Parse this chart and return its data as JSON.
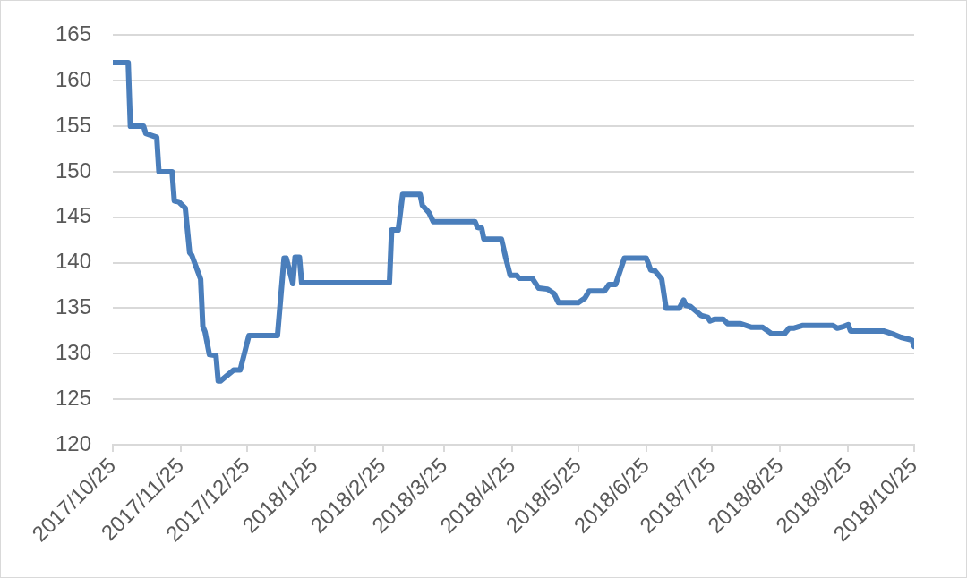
{
  "chart_data": {
    "type": "line",
    "x": [
      "2017-10-25",
      "2017-11-01",
      "2017-11-02",
      "2017-11-08",
      "2017-11-09",
      "2017-11-14",
      "2017-11-15",
      "2017-11-21",
      "2017-11-22",
      "2017-11-24",
      "2017-11-27",
      "2017-11-29",
      "2017-11-30",
      "2017-12-04",
      "2017-12-05",
      "2017-12-06",
      "2017-12-08",
      "2017-12-11",
      "2017-12-12",
      "2017-12-13",
      "2017-12-19",
      "2017-12-22",
      "2017-12-26",
      "2018-01-08",
      "2018-01-11",
      "2018-01-12",
      "2018-01-15",
      "2018-01-16",
      "2018-01-18",
      "2018-01-19",
      "2018-02-28",
      "2018-03-01",
      "2018-03-04",
      "2018-03-06",
      "2018-03-14",
      "2018-03-15",
      "2018-03-18",
      "2018-03-20",
      "2018-04-08",
      "2018-04-09",
      "2018-04-11",
      "2018-04-12",
      "2018-04-20",
      "2018-04-22",
      "2018-04-24",
      "2018-04-27",
      "2018-04-28",
      "2018-05-04",
      "2018-05-07",
      "2018-05-11",
      "2018-05-14",
      "2018-05-16",
      "2018-05-25",
      "2018-05-28",
      "2018-05-30",
      "2018-06-06",
      "2018-06-08",
      "2018-06-11",
      "2018-06-15",
      "2018-06-25",
      "2018-06-27",
      "2018-06-29",
      "2018-07-02",
      "2018-07-04",
      "2018-07-10",
      "2018-07-12",
      "2018-07-13",
      "2018-07-15",
      "2018-07-17",
      "2018-07-20",
      "2018-07-23",
      "2018-07-24",
      "2018-07-26",
      "2018-07-30",
      "2018-08-01",
      "2018-08-07",
      "2018-08-12",
      "2018-08-17",
      "2018-08-21",
      "2018-08-27",
      "2018-08-29",
      "2018-08-31",
      "2018-09-04",
      "2018-09-18",
      "2018-09-20",
      "2018-09-23",
      "2018-09-25",
      "2018-09-26",
      "2018-10-11",
      "2018-10-16",
      "2018-10-19",
      "2018-10-24",
      "2018-10-25"
    ],
    "series": [
      {
        "color": "#4a7ebb",
        "values": [
          162,
          162,
          155,
          155,
          154.2,
          153.8,
          150,
          150,
          146.8,
          146.7,
          146,
          141.1,
          140.8,
          138.2,
          133,
          132.4,
          129.9,
          129.8,
          127,
          127,
          128.2,
          128.2,
          132,
          132,
          140.5,
          140.5,
          137.7,
          140.6,
          140.6,
          137.8,
          137.8,
          143.6,
          143.6,
          147.5,
          147.5,
          146.3,
          145.5,
          144.5,
          144.5,
          143.9,
          143.8,
          142.6,
          142.6,
          140.5,
          138.6,
          138.6,
          138.3,
          138.3,
          137.2,
          137.1,
          136.6,
          135.6,
          135.6,
          136.1,
          136.9,
          136.9,
          137.6,
          137.6,
          140.5,
          140.5,
          139.2,
          139.1,
          138.2,
          135,
          135,
          135.9,
          135.3,
          135.2,
          134.8,
          134.2,
          134,
          133.6,
          133.8,
          133.8,
          133.3,
          133.3,
          132.9,
          132.9,
          132.2,
          132.2,
          132.8,
          132.8,
          133.1,
          133.1,
          132.8,
          133,
          133.2,
          132.5,
          132.5,
          132.1,
          131.8,
          131.5,
          130.8
        ]
      }
    ],
    "xlim": [
      "2017-10-25",
      "2018-10-25"
    ],
    "xticks": [
      {
        "value": "2017-10-25",
        "label": "2017/10/25"
      },
      {
        "value": "2017-11-25",
        "label": "2017/11/25"
      },
      {
        "value": "2017-12-25",
        "label": "2017/12/25"
      },
      {
        "value": "2018-01-25",
        "label": "2018/1/25"
      },
      {
        "value": "2018-02-25",
        "label": "2018/2/25"
      },
      {
        "value": "2018-03-25",
        "label": "2018/3/25"
      },
      {
        "value": "2018-04-25",
        "label": "2018/4/25"
      },
      {
        "value": "2018-05-25",
        "label": "2018/5/25"
      },
      {
        "value": "2018-06-25",
        "label": "2018/6/25"
      },
      {
        "value": "2018-07-25",
        "label": "2018/7/25"
      },
      {
        "value": "2018-08-25",
        "label": "2018/8/25"
      },
      {
        "value": "2018-09-25",
        "label": "2018/9/25"
      },
      {
        "value": "2018-10-25",
        "label": "2018/10/25"
      }
    ],
    "ylim": [
      120,
      165
    ],
    "yticks": [
      120,
      125,
      130,
      135,
      140,
      145,
      150,
      155,
      160,
      165
    ],
    "grid": "y",
    "legend": false,
    "marker": "none",
    "line_style": "solid"
  }
}
